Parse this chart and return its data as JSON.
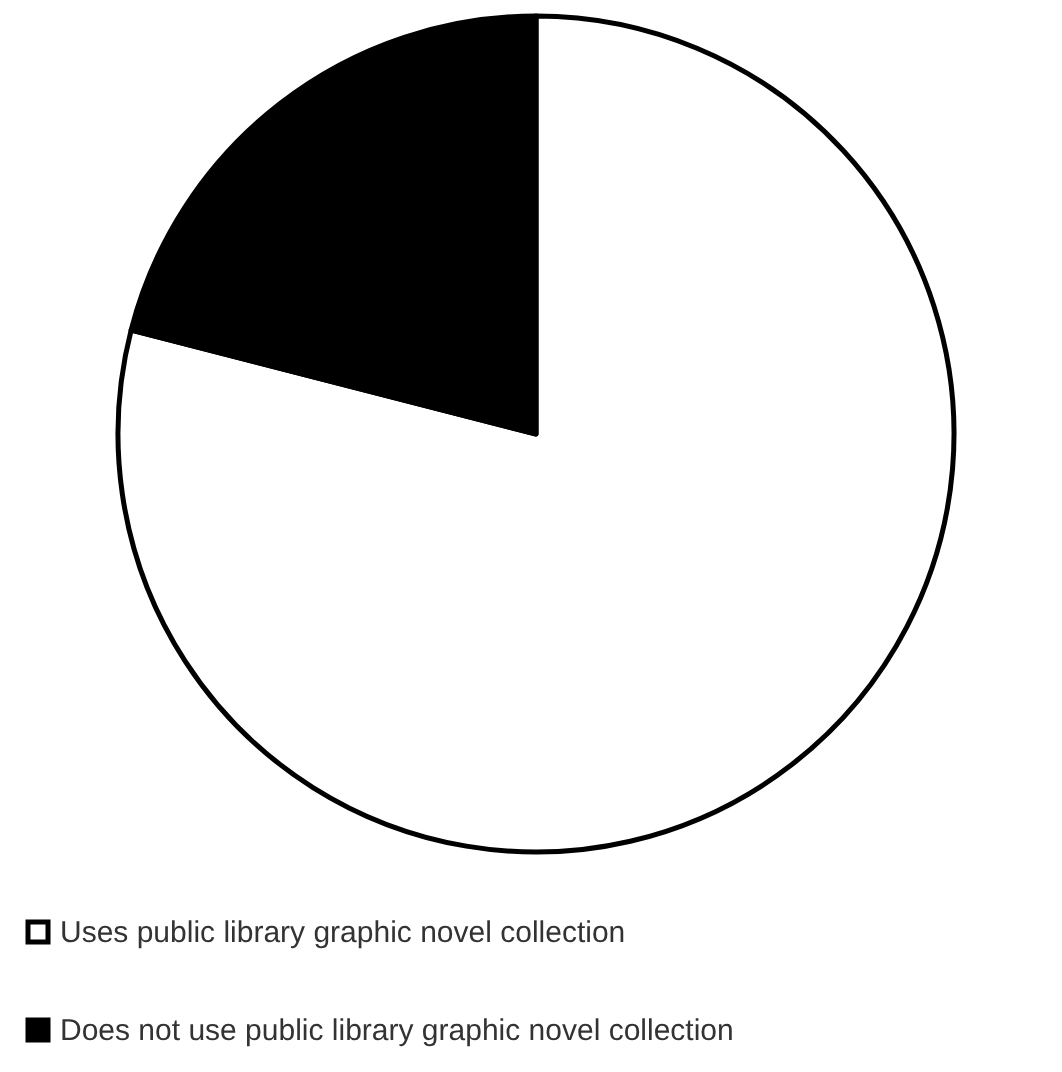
{
  "chart_data": {
    "type": "pie",
    "categories": [
      "Uses public library graphic novel collection",
      "Does not use public library graphic novel collection"
    ],
    "values": [
      79,
      21
    ],
    "colors": [
      "#ffffff",
      "#000000"
    ],
    "legend": "bottom"
  }
}
